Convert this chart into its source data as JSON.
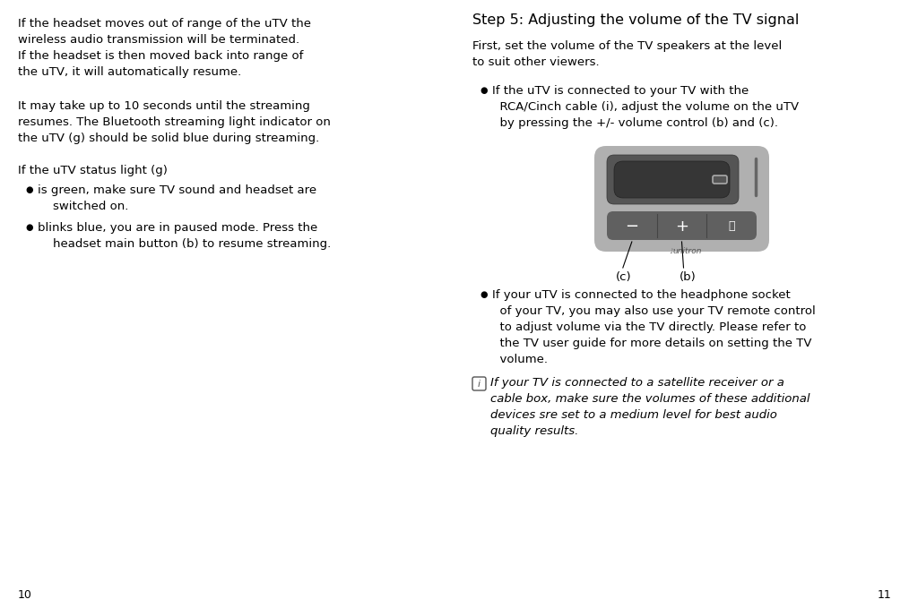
{
  "bg_color": "#ffffff",
  "left_column": {
    "para1": "If the headset moves out of range of the uTV the\nwireless audio transmission will be terminated.\nIf the headset is then moved back into range of\nthe uTV, it will automatically resume.",
    "para2": "It may take up to 10 seconds until the streaming\nresumes. The Bluetooth streaming light indicator on\nthe uTV (g) should be solid blue during streaming.",
    "para3_header": "If the uTV status light (g)",
    "bullet1": "is green, make sure TV sound and headset are\n    switched on.",
    "bullet2": "blinks blue, you are in paused mode. Press the\n    headset main button (b) to resume streaming.",
    "page_num": "10"
  },
  "right_column": {
    "title": "Step 5: Adjusting the volume of the TV signal",
    "para1": "First, set the volume of the TV speakers at the level\nto suit other viewers.",
    "bullet1_text": "If the uTV is connected to your TV with the\n  RCA/Cinch cable (i), adjust the volume on the uTV\n  by pressing the +/- volume control (b) and (c).",
    "label_c": "(c)",
    "label_b": "(b)",
    "bullet2_text": "If your uTV is connected to the headphone socket\n  of your TV, you may also use your TV remote control\n  to adjust volume via the TV directly. Please refer to\n  the TV user guide for more details on setting the TV\n  volume.",
    "italic_text": "If your TV is connected to a satellite receiver or a\ncable box, make sure the volumes of these additional\ndevices sre set to a medium level for best audio\nquality results.",
    "page_num": "11"
  },
  "device": {
    "outer_color": "#b0b0b0",
    "dark_area_color": "#555555",
    "screen_color": "#404040",
    "screen_inner_color": "#363636",
    "button_color": "#606060",
    "button_border": "#444444",
    "bar_color": "#888888",
    "icon_border": "#aaaaaa",
    "brand_color": "#555555",
    "white": "#ffffff"
  },
  "font_size_body": 9.5,
  "font_size_title": 11.5,
  "font_size_page": 9.0
}
